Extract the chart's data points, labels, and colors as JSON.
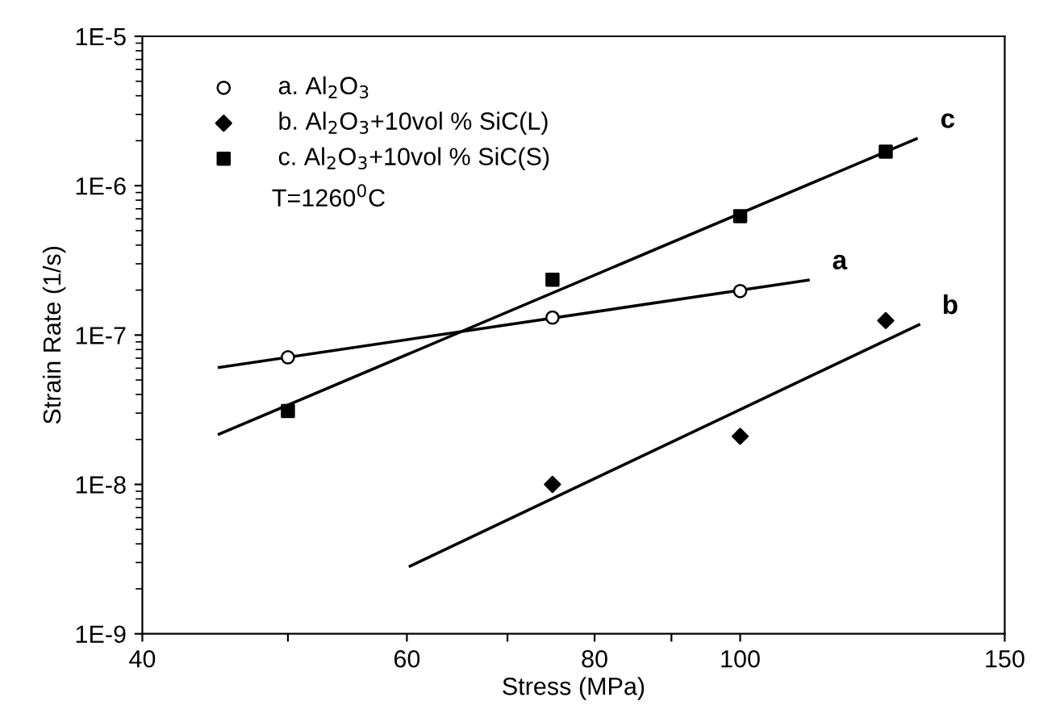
{
  "chart_data": {
    "type": "scatter",
    "xlabel": "Stress (MPa)",
    "ylabel": "Strain Rate (1/s)",
    "log": "xy",
    "xlim": [
      40,
      150
    ],
    "xticks": [
      40,
      {
        "value": 50,
        "label": null
      },
      60,
      {
        "value": 70,
        "label": null
      },
      80,
      {
        "value": 90,
        "label": null
      },
      100,
      150
    ],
    "ylim": [
      1e-09,
      1e-05
    ],
    "yticks": [
      {
        "value": 1e-09,
        "label": "1E-9"
      },
      {
        "value": 1e-08,
        "label": "1E-8"
      },
      {
        "value": 1e-07,
        "label": "1E-7"
      },
      {
        "value": 1e-06,
        "label": "1E-6"
      },
      {
        "value": 1e-05,
        "label": "1E-5"
      }
    ],
    "grid": false,
    "legend": "top left",
    "series": [
      {
        "name": "a. Al$_{2}$O$_{3}$",
        "marker": "circle",
        "color": "#000000",
        "x": [
          50,
          75,
          100
        ],
        "values": [
          7.1e-08,
          1.31e-07,
          1.97e-07
        ]
      },
      {
        "name": "b. Al$_{2}$O$_{3}$+10vol % SiC(L)",
        "marker": "diamond",
        "color": "#000000",
        "x": [
          75,
          100,
          125
        ],
        "values": [
          1e-08,
          2.1e-08,
          1.25e-07
        ]
      },
      {
        "name": "c. Al$_{2}$O$_{3}$+10vol % SiC(S)",
        "marker": "square",
        "color": "#000000",
        "x": [
          50,
          75,
          100,
          125
        ],
        "values": [
          3.1e-08,
          2.35e-07,
          6.25e-07,
          1.69e-06
        ]
      },
      {
        "name": "a",
        "type": "line",
        "color": "#000000",
        "line_style": "solid",
        "x": [
          45,
          111
        ],
        "values": [
          6.07e-08,
          2.33e-07
        ]
      },
      {
        "name": "b",
        "type": "line",
        "color": "#000000",
        "line_style": "solid",
        "x": [
          60.3,
          131.5
        ],
        "values": [
          2.84e-09,
          1.17e-07
        ]
      },
      {
        "name": "c",
        "type": "line",
        "color": "#000000",
        "line_style": "solid",
        "x": [
          45,
          131
        ],
        "values": [
          2.17e-08,
          2.06e-06
        ]
      }
    ],
    "annotations": [
      "T=1260$^{0}$C"
    ]
  }
}
